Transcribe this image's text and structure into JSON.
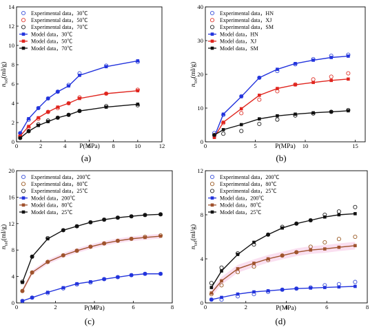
{
  "chart_data": [
    {
      "type": "line",
      "panel_label": "(a)",
      "xlabel": "P(MPa)",
      "ylabel_main": "n",
      "ylabel_sub": "tad",
      "ylabel_unit": "(ml/g)",
      "xlim": [
        0,
        12
      ],
      "ylim": [
        0,
        14
      ],
      "xticks": [
        "0",
        "2",
        "4",
        "6",
        "8",
        "10",
        "12"
      ],
      "yticks": [
        "0",
        "2",
        "4",
        "6",
        "8",
        "10",
        "12",
        "14"
      ],
      "legend_position": "top-left",
      "series": [
        {
          "name": "Experimental data，30℃",
          "kind": "experimental",
          "marker": "circle-open",
          "color": "#3a4fd9",
          "x": [
            0.3,
            1.0,
            1.8,
            2.6,
            3.4,
            4.3,
            5.2,
            7.4,
            10.0
          ],
          "y": [
            0.9,
            2.3,
            3.5,
            4.5,
            5.2,
            5.9,
            7.1,
            7.9,
            8.3
          ]
        },
        {
          "name": "Experimental data，50℃",
          "kind": "experimental",
          "marker": "circle-open",
          "color": "#e0372e",
          "x": [
            0.3,
            1.0,
            1.8,
            2.6,
            3.4,
            4.3,
            5.2,
            7.4,
            10.0
          ],
          "y": [
            0.6,
            1.5,
            2.4,
            3.1,
            3.5,
            4.0,
            4.6,
            5.0,
            5.4
          ]
        },
        {
          "name": "Experimental data，70℃",
          "kind": "experimental",
          "marker": "circle-open",
          "color": "#222222",
          "x": [
            0.3,
            1.0,
            1.8,
            2.6,
            3.4,
            4.3,
            5.2,
            7.4,
            10.0
          ],
          "y": [
            0.4,
            1.1,
            1.8,
            2.2,
            2.5,
            2.8,
            3.2,
            3.7,
            3.8
          ]
        },
        {
          "name": "Model data，30℃",
          "kind": "model",
          "marker": "square",
          "color": "#2233dd",
          "x": [
            0.3,
            1.0,
            1.8,
            2.6,
            3.4,
            4.3,
            5.2,
            7.4,
            10.0
          ],
          "y": [
            0.9,
            2.4,
            3.5,
            4.5,
            5.2,
            5.8,
            6.9,
            7.8,
            8.4
          ]
        },
        {
          "name": "Model data，50℃",
          "kind": "model",
          "marker": "square",
          "color": "#e0251e",
          "x": [
            0.3,
            1.0,
            1.8,
            2.6,
            3.4,
            4.3,
            5.2,
            7.4,
            10.0
          ],
          "y": [
            0.6,
            1.6,
            2.5,
            3.1,
            3.6,
            4.0,
            4.5,
            5.0,
            5.3
          ]
        },
        {
          "name": "Model data，70℃",
          "kind": "model",
          "marker": "square",
          "color": "#111111",
          "x": [
            0.3,
            1.0,
            1.8,
            2.6,
            3.4,
            4.3,
            5.2,
            7.4,
            10.0
          ],
          "y": [
            0.4,
            1.1,
            1.7,
            2.1,
            2.5,
            2.8,
            3.2,
            3.6,
            3.9
          ]
        }
      ]
    },
    {
      "type": "line",
      "panel_label": "(b)",
      "xlabel": "P(MPa)",
      "ylabel_main": "n",
      "ylabel_sub": "tad",
      "ylabel_unit": "(ml/g)",
      "xlim": [
        0,
        16
      ],
      "ylim": [
        0,
        40
      ],
      "xticks": [
        "0",
        "5",
        "10",
        "15"
      ],
      "xtick_values": [
        0,
        5,
        10,
        15
      ],
      "yticks": [
        "0",
        "10",
        "20",
        "30",
        "40"
      ],
      "legend_position": "top-left",
      "series": [
        {
          "name": "Experimental data，HN",
          "kind": "experimental",
          "marker": "circle-open",
          "color": "#3a4fd9",
          "x": [
            0.9,
            1.8,
            3.6,
            5.4,
            7.2,
            9.0,
            10.8,
            12.6,
            14.3
          ],
          "y": [
            2.6,
            8.0,
            13.5,
            19.0,
            21.0,
            23.0,
            24.5,
            25.5,
            25.8
          ]
        },
        {
          "name": "Experimental data，XJ",
          "kind": "experimental",
          "marker": "circle-open",
          "color": "#e0372e",
          "x": [
            0.9,
            1.8,
            3.6,
            5.4,
            7.2,
            9.0,
            10.8,
            12.6,
            14.3
          ],
          "y": [
            2.0,
            5.6,
            8.5,
            12.5,
            15.0,
            17.0,
            18.5,
            19.3,
            20.3
          ]
        },
        {
          "name": "Experimental data，SM",
          "kind": "experimental",
          "marker": "circle-open",
          "color": "#222222",
          "x": [
            0.9,
            1.8,
            3.6,
            5.4,
            7.2,
            9.0,
            10.8,
            12.6,
            14.3
          ],
          "y": [
            2.0,
            2.4,
            3.2,
            5.3,
            6.6,
            7.8,
            8.4,
            8.9,
            9.4
          ]
        },
        {
          "name": "Model data，HN",
          "kind": "model",
          "marker": "square",
          "color": "#2233dd",
          "x": [
            0.9,
            1.8,
            3.6,
            5.4,
            7.2,
            9.0,
            10.8,
            12.6,
            14.3
          ],
          "y": [
            1.5,
            8.2,
            13.4,
            19.0,
            21.5,
            23.2,
            24.2,
            25.0,
            25.4
          ]
        },
        {
          "name": "Model data，XJ",
          "kind": "model",
          "marker": "square",
          "color": "#e0251e",
          "x": [
            0.9,
            1.8,
            3.6,
            5.4,
            7.2,
            9.0,
            10.8,
            12.6,
            14.3
          ],
          "y": [
            1.3,
            5.8,
            9.8,
            13.8,
            15.8,
            16.9,
            17.6,
            18.2,
            18.6
          ]
        },
        {
          "name": "Model data，SM",
          "kind": "model",
          "marker": "square",
          "color": "#111111",
          "x": [
            0.9,
            1.8,
            3.6,
            5.4,
            7.2,
            9.0,
            10.8,
            12.6,
            14.3
          ],
          "y": [
            2.0,
            3.6,
            5.1,
            6.8,
            7.7,
            8.2,
            8.6,
            8.9,
            9.2
          ]
        }
      ]
    },
    {
      "type": "line",
      "panel_label": "(c)",
      "xlabel": "P(MPa)",
      "ylabel_main": "n",
      "ylabel_sub": "tad",
      "ylabel_unit": "(ml/g)",
      "xlim": [
        0,
        8
      ],
      "ylim": [
        0,
        20
      ],
      "xticks": [
        "0",
        "2",
        "4",
        "6",
        "8"
      ],
      "yticks": [
        "0",
        "4",
        "8",
        "12",
        "16",
        "20"
      ],
      "legend_position": "top-left",
      "series": [
        {
          "name": "Experimental data，200℃",
          "kind": "experimental",
          "marker": "circle-open",
          "color": "#3a4fd9",
          "x": [
            0.3,
            0.8,
            1.6,
            2.4,
            3.1,
            3.8,
            4.5,
            5.2,
            5.9,
            6.6,
            7.4
          ],
          "y": [
            0.3,
            0.8,
            1.5,
            2.2,
            2.8,
            3.1,
            3.6,
            3.9,
            4.2,
            4.4,
            4.4
          ]
        },
        {
          "name": "Experimental data，80℃",
          "kind": "experimental",
          "marker": "circle-open",
          "color": "#9a5a24",
          "x": [
            0.3,
            0.8,
            1.6,
            2.4,
            3.1,
            3.8,
            4.5,
            5.2,
            5.9,
            6.6,
            7.4
          ],
          "y": [
            1.8,
            4.6,
            6.2,
            7.2,
            7.9,
            8.5,
            9.0,
            9.4,
            9.7,
            10.0,
            10.2
          ]
        },
        {
          "name": "Experimental data，25℃",
          "kind": "experimental",
          "marker": "circle-open",
          "color": "#222222",
          "x": [
            0.3,
            0.8,
            1.6,
            2.4,
            3.1,
            3.8,
            4.5,
            5.2,
            5.9,
            6.6,
            7.4
          ],
          "y": [
            3.2,
            7.0,
            9.8,
            11.0,
            11.6,
            12.2,
            12.6,
            12.9,
            13.1,
            13.3,
            13.4
          ]
        },
        {
          "name": "Model data，200℃",
          "kind": "model",
          "marker": "square",
          "color": "#2233dd",
          "x": [
            0.3,
            0.8,
            1.6,
            2.4,
            3.1,
            3.8,
            4.5,
            5.2,
            5.9,
            6.6,
            7.4
          ],
          "y": [
            0.3,
            0.8,
            1.6,
            2.3,
            2.9,
            3.2,
            3.6,
            3.9,
            4.2,
            4.4,
            4.4
          ]
        },
        {
          "name": "Model data，80℃",
          "kind": "model",
          "marker": "square",
          "color": "#a0522d",
          "x": [
            0.3,
            0.8,
            1.6,
            2.4,
            3.1,
            3.8,
            4.5,
            5.2,
            5.9,
            6.6,
            7.4
          ],
          "y": [
            1.8,
            4.6,
            6.2,
            7.2,
            7.9,
            8.5,
            9.0,
            9.4,
            9.7,
            9.9,
            10.1
          ]
        },
        {
          "name": "Model data，25℃",
          "kind": "model",
          "marker": "square",
          "color": "#111111",
          "x": [
            0.3,
            0.8,
            1.6,
            2.4,
            3.1,
            3.8,
            4.5,
            5.2,
            5.9,
            6.6,
            7.4
          ],
          "y": [
            3.1,
            7.0,
            9.7,
            11.0,
            11.6,
            12.2,
            12.6,
            12.9,
            13.1,
            13.3,
            13.4
          ]
        }
      ]
    },
    {
      "type": "line",
      "panel_label": "(d)",
      "xlabel": "P(MPa)",
      "ylabel_main": "n",
      "ylabel_sub": "tad",
      "ylabel_unit": "(ml/g)",
      "xlim": [
        0,
        8
      ],
      "ylim": [
        0,
        12
      ],
      "xticks": [
        "0",
        "2",
        "4",
        "6",
        "8"
      ],
      "yticks": [
        "0",
        "4",
        "8",
        "12"
      ],
      "legend_position": "top-left",
      "series": [
        {
          "name": "Experimental data，200℃",
          "kind": "experimental",
          "marker": "circle-open",
          "color": "#3a4fd9",
          "x": [
            0.3,
            0.8,
            1.6,
            2.4,
            3.1,
            3.8,
            4.5,
            5.2,
            5.9,
            6.6,
            7.4
          ],
          "y": [
            0.3,
            0.3,
            0.6,
            0.8,
            1.0,
            1.2,
            1.3,
            1.4,
            1.6,
            1.7,
            1.9
          ]
        },
        {
          "name": "Experimental data，80℃",
          "kind": "experimental",
          "marker": "circle-open",
          "color": "#9a5a24",
          "x": [
            0.3,
            0.8,
            1.6,
            2.4,
            3.1,
            3.8,
            4.5,
            5.2,
            5.9,
            6.6,
            7.4
          ],
          "y": [
            0.8,
            1.6,
            2.8,
            3.3,
            3.9,
            4.3,
            4.6,
            5.1,
            5.5,
            5.8,
            6.0
          ]
        },
        {
          "name": "Experimental data，25℃",
          "kind": "experimental",
          "marker": "circle-open",
          "color": "#222222",
          "x": [
            0.3,
            0.8,
            1.6,
            2.4,
            3.1,
            3.8,
            4.5,
            5.2,
            5.9,
            6.6,
            7.4
          ],
          "y": [
            1.8,
            3.2,
            4.5,
            5.3,
            6.2,
            6.9,
            7.2,
            7.5,
            8.0,
            8.3,
            8.7
          ]
        },
        {
          "name": "Model data，200℃",
          "kind": "model",
          "marker": "square",
          "color": "#2233dd",
          "x": [
            0.3,
            0.8,
            1.6,
            2.4,
            3.1,
            3.8,
            4.5,
            5.2,
            5.9,
            6.6,
            7.4
          ],
          "y": [
            0.3,
            0.5,
            0.8,
            1.0,
            1.1,
            1.2,
            1.3,
            1.35,
            1.4,
            1.45,
            1.5
          ]
        },
        {
          "name": "Model data，80℃",
          "kind": "model",
          "marker": "square",
          "color": "#a0522d",
          "x": [
            0.3,
            0.8,
            1.6,
            2.4,
            3.1,
            3.8,
            4.5,
            5.2,
            5.9,
            6.6,
            7.4
          ],
          "y": [
            0.9,
            2.0,
            3.1,
            3.6,
            4.0,
            4.3,
            4.6,
            4.8,
            4.9,
            5.05,
            5.2
          ]
        },
        {
          "name": "Model data，25℃",
          "kind": "model",
          "marker": "square",
          "color": "#111111",
          "x": [
            0.3,
            0.8,
            1.6,
            2.4,
            3.1,
            3.8,
            4.5,
            5.2,
            5.9,
            6.6,
            7.4
          ],
          "y": [
            1.4,
            2.9,
            4.4,
            5.5,
            6.2,
            6.8,
            7.2,
            7.5,
            7.8,
            8.0,
            8.1
          ]
        }
      ]
    }
  ]
}
